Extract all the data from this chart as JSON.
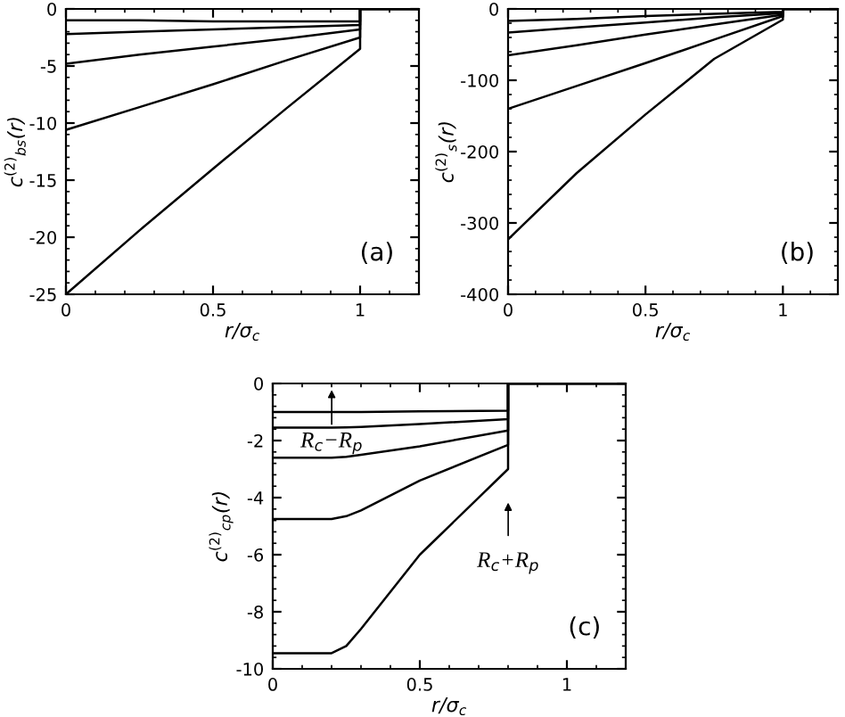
{
  "chart_data": [
    {
      "type": "line",
      "xlabel": "r/σ$_{c}$",
      "ylabel": "c$^{(2)}$$_{bs}$(r)",
      "xlim": [
        0,
        1.2
      ],
      "ylim": [
        -25,
        0
      ],
      "xticks": [
        0,
        0.5,
        1
      ],
      "yticks": [
        -25,
        -20,
        -15,
        -10,
        -5,
        0
      ],
      "grid": false,
      "legend": false,
      "marker": "none",
      "line_style": "solid",
      "annotations": [
        "(a)"
      ],
      "x": [
        0,
        0.25,
        0.5,
        0.75,
        1,
        1,
        1.2
      ],
      "series": [
        {
          "color": "#000000",
          "values": [
            -1.0,
            -1.0,
            -1.1,
            -1.1,
            -1.1,
            0,
            0
          ]
        },
        {
          "color": "#000000",
          "values": [
            -2.2,
            -2.0,
            -1.8,
            -1.6,
            -1.4,
            0,
            0
          ]
        },
        {
          "color": "#000000",
          "values": [
            -4.8,
            -4.0,
            -3.3,
            -2.6,
            -1.8,
            0,
            0
          ]
        },
        {
          "color": "#000000",
          "values": [
            -10.6,
            -8.6,
            -6.6,
            -4.5,
            -2.5,
            0,
            0
          ]
        },
        {
          "color": "#000000",
          "values": [
            -25,
            -19.4,
            -14.0,
            -8.7,
            -3.5,
            0,
            0
          ]
        }
      ]
    },
    {
      "type": "line",
      "xlabel": "r/σ$_{c}$",
      "ylabel": "c$^{(2)}$$_{s}$(r)",
      "xlim": [
        0,
        1.2
      ],
      "ylim": [
        -400,
        0
      ],
      "xticks": [
        0,
        0.5,
        1
      ],
      "yticks": [
        -400,
        -300,
        -200,
        -100,
        0
      ],
      "grid": false,
      "legend": false,
      "marker": "none",
      "line_style": "solid",
      "annotations": [
        "(b)"
      ],
      "x": [
        0,
        0.25,
        0.5,
        0.75,
        1,
        1,
        1.2
      ],
      "series": [
        {
          "color": "#000000",
          "values": [
            -17,
            -14,
            -10,
            -7,
            -4,
            0,
            0
          ]
        },
        {
          "color": "#000000",
          "values": [
            -33,
            -26,
            -19,
            -12,
            -6,
            0,
            0
          ]
        },
        {
          "color": "#000000",
          "values": [
            -65,
            -51,
            -36,
            -22,
            -8,
            0,
            0
          ]
        },
        {
          "color": "#000000",
          "values": [
            -140,
            -108,
            -76,
            -43,
            -10,
            0,
            0
          ]
        },
        {
          "color": "#000000",
          "values": [
            -323,
            -230,
            -148,
            -70,
            -15,
            0,
            0
          ]
        }
      ]
    },
    {
      "type": "line",
      "xlabel": "r/σ$_{c}$",
      "ylabel": "c$^{(2)}$$_{cp}$(r)",
      "xlim": [
        0,
        1.2
      ],
      "ylim": [
        -10,
        0
      ],
      "xticks": [
        0,
        0.5,
        1
      ],
      "yticks": [
        -10,
        -8,
        -6,
        -4,
        -2,
        0
      ],
      "grid": false,
      "legend": false,
      "marker": "none",
      "line_style": "solid",
      "annotations": [
        "(c)",
        "R$_{c}$−R$_{p}$",
        "R$_{c}$+R$_{p}$"
      ],
      "x": [
        0,
        0.2,
        0.25,
        0.3,
        0.5,
        0.8,
        0.8,
        1.2
      ],
      "series": [
        {
          "color": "#000000",
          "values": [
            -1.0,
            -1.0,
            -1.0,
            -1.0,
            -0.98,
            -0.95,
            0,
            0
          ]
        },
        {
          "color": "#000000",
          "values": [
            -1.55,
            -1.55,
            -1.54,
            -1.52,
            -1.42,
            -1.25,
            0,
            0
          ]
        },
        {
          "color": "#000000",
          "values": [
            -2.6,
            -2.6,
            -2.57,
            -2.5,
            -2.2,
            -1.65,
            0,
            0
          ]
        },
        {
          "color": "#000000",
          "values": [
            -4.75,
            -4.75,
            -4.65,
            -4.45,
            -3.4,
            -2.15,
            0,
            0
          ]
        },
        {
          "color": "#000000",
          "values": [
            -9.45,
            -9.45,
            -9.2,
            -8.6,
            -6.0,
            -3.0,
            0,
            0
          ]
        }
      ]
    }
  ]
}
